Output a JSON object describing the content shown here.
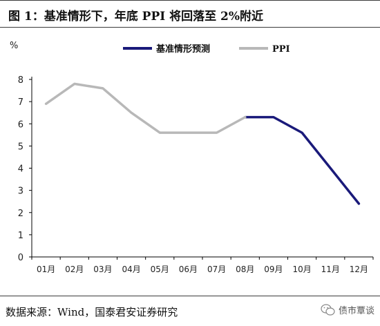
{
  "header": {
    "title": "图  1：基准情形下，年底 PPI 将回落至 2%附近"
  },
  "footer": {
    "source": "数据来源：Wind，国泰君安证券研究",
    "watermark": "债市覃谈"
  },
  "colors": {
    "forecast": "#1a1a7a",
    "ppi": "#b8b8b8",
    "axis": "#000000"
  },
  "chart_data": {
    "type": "line",
    "title": "图  1：基准情形下，年底 PPI 将回落至 2%附近",
    "ylabel": "%",
    "xlabel": "",
    "categories": [
      "01月",
      "02月",
      "03月",
      "04月",
      "05月",
      "06月",
      "07月",
      "08月",
      "09月",
      "10月",
      "11月",
      "12月"
    ],
    "ylim": [
      0,
      8
    ],
    "yticks": [
      0,
      1,
      2,
      3,
      4,
      5,
      6,
      7,
      8
    ],
    "grid": false,
    "legend_position": "top",
    "series": [
      {
        "name": "基准情形预测",
        "values": [
          null,
          null,
          null,
          null,
          null,
          null,
          null,
          6.3,
          6.3,
          5.6,
          4.0,
          2.4
        ]
      },
      {
        "name": "PPI",
        "values": [
          6.9,
          7.8,
          7.6,
          6.5,
          5.6,
          5.6,
          5.6,
          6.3,
          null,
          null,
          null,
          null
        ]
      }
    ]
  }
}
